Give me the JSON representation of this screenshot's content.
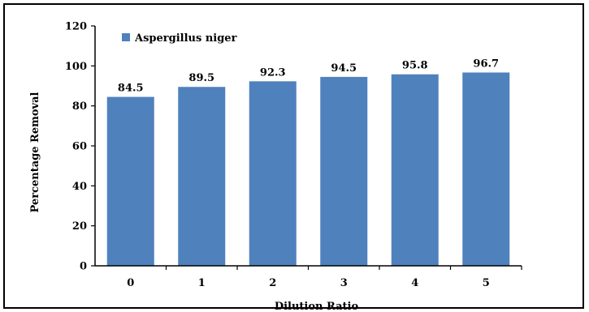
{
  "chart_data": {
    "type": "bar",
    "categories": [
      "0",
      "1",
      "2",
      "3",
      "4",
      "5"
    ],
    "series": [
      {
        "name": "Aspergillus niger",
        "values": [
          84.5,
          89.5,
          92.3,
          94.5,
          95.8,
          96.7
        ],
        "color": "#4f81bd"
      }
    ],
    "data_labels": [
      "84.5",
      "89.5",
      "92.3",
      "94.5",
      "95.8",
      "96.7"
    ],
    "xlabel": "Dilution Ratio",
    "ylabel": "Percentage Removal",
    "ylim": [
      0,
      120
    ],
    "yticks": [
      "0",
      "20",
      "40",
      "60",
      "80",
      "100",
      "120"
    ],
    "legend_position": "top-left",
    "grid": false
  }
}
